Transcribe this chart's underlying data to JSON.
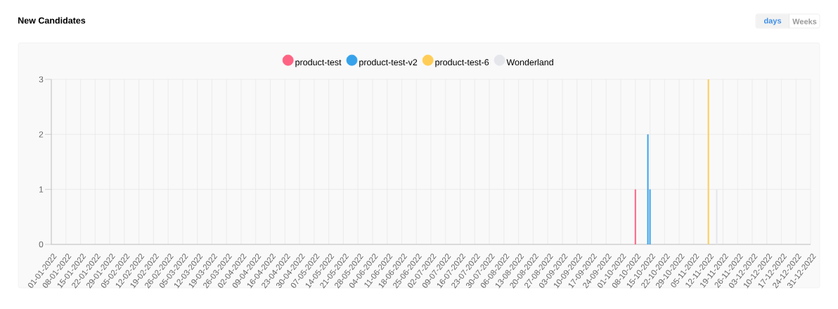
{
  "chart_data": {
    "type": "bar",
    "title": "New Candidates",
    "annotations": [
      "days",
      "Weeks"
    ],
    "xlim": [
      "2022-01-01",
      "2022-12-31"
    ],
    "xticks": [
      {
        "value": "2022-01-01",
        "label": "01-01-2022"
      },
      {
        "value": "2022-01-08",
        "label": "08-01-2022"
      },
      {
        "value": "2022-01-15",
        "label": "15-01-2022"
      },
      {
        "value": "2022-01-22",
        "label": "22-01-2022"
      },
      {
        "value": "2022-01-29",
        "label": "29-01-2022"
      },
      {
        "value": "2022-02-05",
        "label": "05-02-2022"
      },
      {
        "value": "2022-02-12",
        "label": "12-02-2022"
      },
      {
        "value": "2022-02-19",
        "label": "19-02-2022"
      },
      {
        "value": "2022-02-26",
        "label": "26-02-2022"
      },
      {
        "value": "2022-03-05",
        "label": "05-03-2022"
      },
      {
        "value": "2022-03-12",
        "label": "12-03-2022"
      },
      {
        "value": "2022-03-19",
        "label": "19-03-2022"
      },
      {
        "value": "2022-03-26",
        "label": "26-03-2022"
      },
      {
        "value": "2022-04-02",
        "label": "02-04-2022"
      },
      {
        "value": "2022-04-09",
        "label": "09-04-2022"
      },
      {
        "value": "2022-04-16",
        "label": "16-04-2022"
      },
      {
        "value": "2022-04-23",
        "label": "23-04-2022"
      },
      {
        "value": "2022-04-30",
        "label": "30-04-2022"
      },
      {
        "value": "2022-05-07",
        "label": "07-05-2022"
      },
      {
        "value": "2022-05-14",
        "label": "14-05-2022"
      },
      {
        "value": "2022-05-21",
        "label": "21-05-2022"
      },
      {
        "value": "2022-05-28",
        "label": "28-05-2022"
      },
      {
        "value": "2022-06-04",
        "label": "04-06-2022"
      },
      {
        "value": "2022-06-11",
        "label": "11-06-2022"
      },
      {
        "value": "2022-06-18",
        "label": "18-06-2022"
      },
      {
        "value": "2022-06-25",
        "label": "25-06-2022"
      },
      {
        "value": "2022-07-02",
        "label": "02-07-2022"
      },
      {
        "value": "2022-07-09",
        "label": "09-07-2022"
      },
      {
        "value": "2022-07-16",
        "label": "16-07-2022"
      },
      {
        "value": "2022-07-23",
        "label": "23-07-2022"
      },
      {
        "value": "2022-07-30",
        "label": "30-07-2022"
      },
      {
        "value": "2022-08-06",
        "label": "06-08-2022"
      },
      {
        "value": "2022-08-13",
        "label": "13-08-2022"
      },
      {
        "value": "2022-08-20",
        "label": "20-08-2022"
      },
      {
        "value": "2022-08-27",
        "label": "27-08-2022"
      },
      {
        "value": "2022-09-03",
        "label": "03-09-2022"
      },
      {
        "value": "2022-09-10",
        "label": "10-09-2022"
      },
      {
        "value": "2022-09-17",
        "label": "17-09-2022"
      },
      {
        "value": "2022-09-24",
        "label": "24-09-2022"
      },
      {
        "value": "2022-10-01",
        "label": "01-10-2022"
      },
      {
        "value": "2022-10-08",
        "label": "08-10-2022"
      },
      {
        "value": "2022-10-15",
        "label": "15-10-2022"
      },
      {
        "value": "2022-10-22",
        "label": "22-10-2022"
      },
      {
        "value": "2022-10-29",
        "label": "29-10-2022"
      },
      {
        "value": "2022-11-05",
        "label": "05-11-2022"
      },
      {
        "value": "2022-11-12",
        "label": "12-11-2022"
      },
      {
        "value": "2022-11-19",
        "label": "19-11-2022"
      },
      {
        "value": "2022-11-26",
        "label": "26-11-2022"
      },
      {
        "value": "2022-12-03",
        "label": "03-12-2022"
      },
      {
        "value": "2022-12-10",
        "label": "10-12-2022"
      },
      {
        "value": "2022-12-17",
        "label": "17-12-2022"
      },
      {
        "value": "2022-12-24",
        "label": "24-12-2022"
      },
      {
        "value": "2022-12-31",
        "label": "31-12-2022"
      }
    ],
    "ylim": [
      0,
      3
    ],
    "yticks": [
      0,
      1,
      2,
      3
    ],
    "grid": true,
    "legend": "top",
    "series": [
      {
        "name": "product-test",
        "color": "#ff6384",
        "x": [
          "2022-10-08"
        ],
        "values": [
          1
        ]
      },
      {
        "name": "product-test-v2",
        "color": "#36a2eb",
        "x": [
          "2022-10-14",
          "2022-10-15"
        ],
        "values": [
          2,
          1
        ]
      },
      {
        "name": "product-test-6",
        "color": "#ffcd56",
        "x": [
          "2022-11-12"
        ],
        "values": [
          3
        ]
      },
      {
        "name": "Wonderland",
        "color": "#e5e6ec",
        "x": [
          "2022-11-16"
        ],
        "values": [
          1
        ]
      }
    ]
  }
}
